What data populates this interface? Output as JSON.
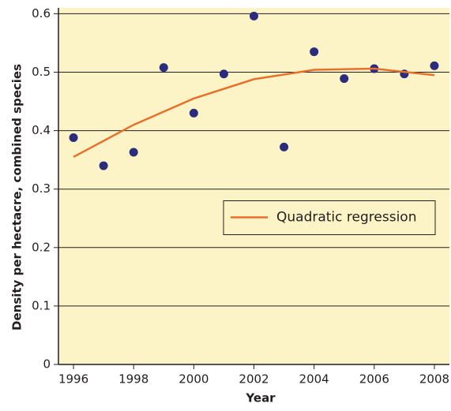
{
  "chart_data": {
    "type": "scatter",
    "x_label": "Year",
    "y_label": "Density per hectacre, combined species",
    "x": [
      1996,
      1997,
      1998,
      1999,
      2000,
      2001,
      2002,
      2003,
      2004,
      2005,
      2006,
      2007,
      2008
    ],
    "series": [
      {
        "color": "#2b2d7c",
        "values": [
          0.388,
          0.34,
          0.363,
          0.508,
          0.43,
          0.497,
          0.596,
          0.372,
          0.535,
          0.489,
          0.506,
          0.497,
          0.511
        ]
      },
      {
        "type": "line",
        "name": "Quadratic regression",
        "color": "#e8702a",
        "x": [
          1996,
          1998,
          2000,
          2002,
          2004,
          2006,
          2008
        ],
        "values": [
          0.355,
          0.41,
          0.455,
          0.488,
          0.504,
          0.506,
          0.495
        ]
      }
    ],
    "xlim": [
      1995.5,
      2008.5
    ],
    "xticks": [
      1996,
      1998,
      2000,
      2002,
      2004,
      2006,
      2008
    ],
    "ylim": [
      0,
      0.61
    ],
    "yticks": [
      0,
      0.1,
      0.2,
      0.3,
      0.4,
      0.5,
      0.6
    ],
    "grid": true,
    "legend": "right",
    "background": "#fcf4c6"
  }
}
